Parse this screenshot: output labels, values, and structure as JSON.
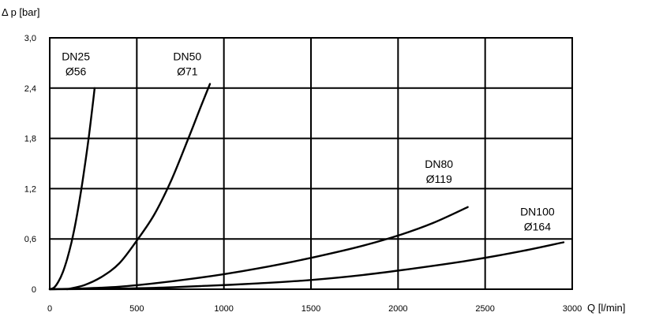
{
  "chart_data": {
    "type": "line",
    "ylabel": "Δ p [bar]",
    "xlabel": "Q [l/min]",
    "xlim": [
      0,
      3000
    ],
    "ylim": [
      0,
      3.0
    ],
    "x_ticks": [
      0,
      500,
      1000,
      1500,
      2000,
      2500,
      3000
    ],
    "x_tick_labels": [
      "0",
      "500",
      "1000",
      "1500",
      "2000",
      "2500",
      "3000"
    ],
    "y_ticks": [
      0,
      0.6,
      1.2,
      1.8,
      2.4,
      3.0
    ],
    "y_tick_labels": [
      "0",
      "0,6",
      "1,2",
      "1,8",
      "2,4",
      "3,0"
    ],
    "grid": true,
    "series": [
      {
        "name": "DN25",
        "name2": "Ø56",
        "points": [
          [
            0,
            0
          ],
          [
            25,
            0.02
          ],
          [
            50,
            0.09
          ],
          [
            75,
            0.2
          ],
          [
            100,
            0.36
          ],
          [
            125,
            0.56
          ],
          [
            150,
            0.81
          ],
          [
            175,
            1.11
          ],
          [
            200,
            1.45
          ],
          [
            225,
            1.83
          ],
          [
            250,
            2.26
          ],
          [
            258,
            2.4
          ]
        ]
      },
      {
        "name": "DN50",
        "name2": "Ø71",
        "points": [
          [
            100,
            0
          ],
          [
            200,
            0.05
          ],
          [
            300,
            0.15
          ],
          [
            400,
            0.31
          ],
          [
            500,
            0.58
          ],
          [
            600,
            0.89
          ],
          [
            700,
            1.31
          ],
          [
            800,
            1.82
          ],
          [
            860,
            2.14
          ],
          [
            920,
            2.45
          ]
        ]
      },
      {
        "name": "DN80",
        "name2": "Ø119",
        "points": [
          [
            0,
            0
          ],
          [
            200,
            0.01
          ],
          [
            400,
            0.03
          ],
          [
            600,
            0.07
          ],
          [
            800,
            0.12
          ],
          [
            1000,
            0.18
          ],
          [
            1200,
            0.25
          ],
          [
            1400,
            0.33
          ],
          [
            1600,
            0.42
          ],
          [
            1800,
            0.52
          ],
          [
            2000,
            0.64
          ],
          [
            2200,
            0.79
          ],
          [
            2400,
            0.98
          ]
        ]
      },
      {
        "name": "DN100",
        "name2": "Ø164",
        "points": [
          [
            0,
            0
          ],
          [
            300,
            0.004
          ],
          [
            600,
            0.016
          ],
          [
            900,
            0.04
          ],
          [
            1200,
            0.07
          ],
          [
            1500,
            0.11
          ],
          [
            1800,
            0.17
          ],
          [
            2100,
            0.25
          ],
          [
            2400,
            0.34
          ],
          [
            2700,
            0.45
          ],
          [
            2950,
            0.56
          ]
        ]
      }
    ],
    "annotations": [
      {
        "line1": "DN25",
        "line2": "Ø56",
        "x": 150,
        "y": 2.73
      },
      {
        "line1": "DN50",
        "line2": "Ø71",
        "x": 790,
        "y": 2.73
      },
      {
        "line1": "DN80",
        "line2": "Ø119",
        "x": 2235,
        "y": 1.45
      },
      {
        "line1": "DN100",
        "line2": "Ø164",
        "x": 2800,
        "y": 0.88
      }
    ]
  }
}
